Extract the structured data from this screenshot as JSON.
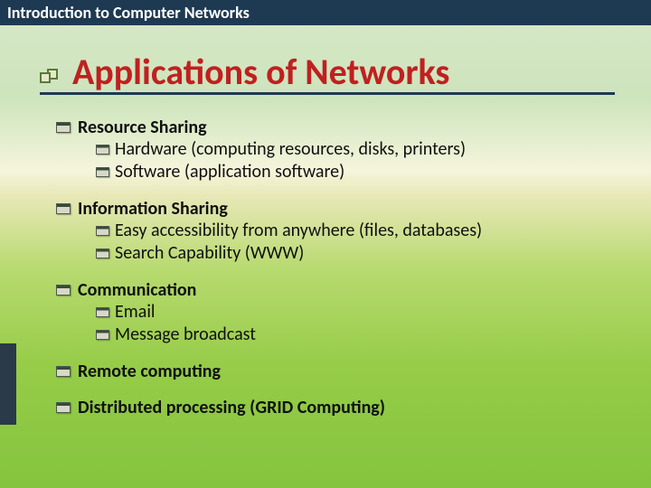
{
  "header": {
    "title": "Introduction to Computer Networks"
  },
  "slide": {
    "title": "Applications of Networks",
    "title_color": "#c02020",
    "underline_color": "#1e3a52"
  },
  "topics": [
    {
      "title": "Resource Sharing",
      "subs": [
        "Hardware (computing resources, disks, printers)",
        "Software (application software)"
      ]
    },
    {
      "title": "Information Sharing",
      "subs": [
        "Easy accessibility from anywhere (files, databases)",
        "Search Capability (WWW)"
      ]
    },
    {
      "title": "Communication",
      "subs": [
        "Email",
        "Message broadcast"
      ]
    },
    {
      "title": "Remote computing",
      "subs": []
    },
    {
      "title": "Distributed processing (GRID Computing)",
      "subs": []
    }
  ],
  "colors": {
    "header_bg": "#1e3a52",
    "header_text": "#ffffff",
    "body_text": "#101010"
  }
}
